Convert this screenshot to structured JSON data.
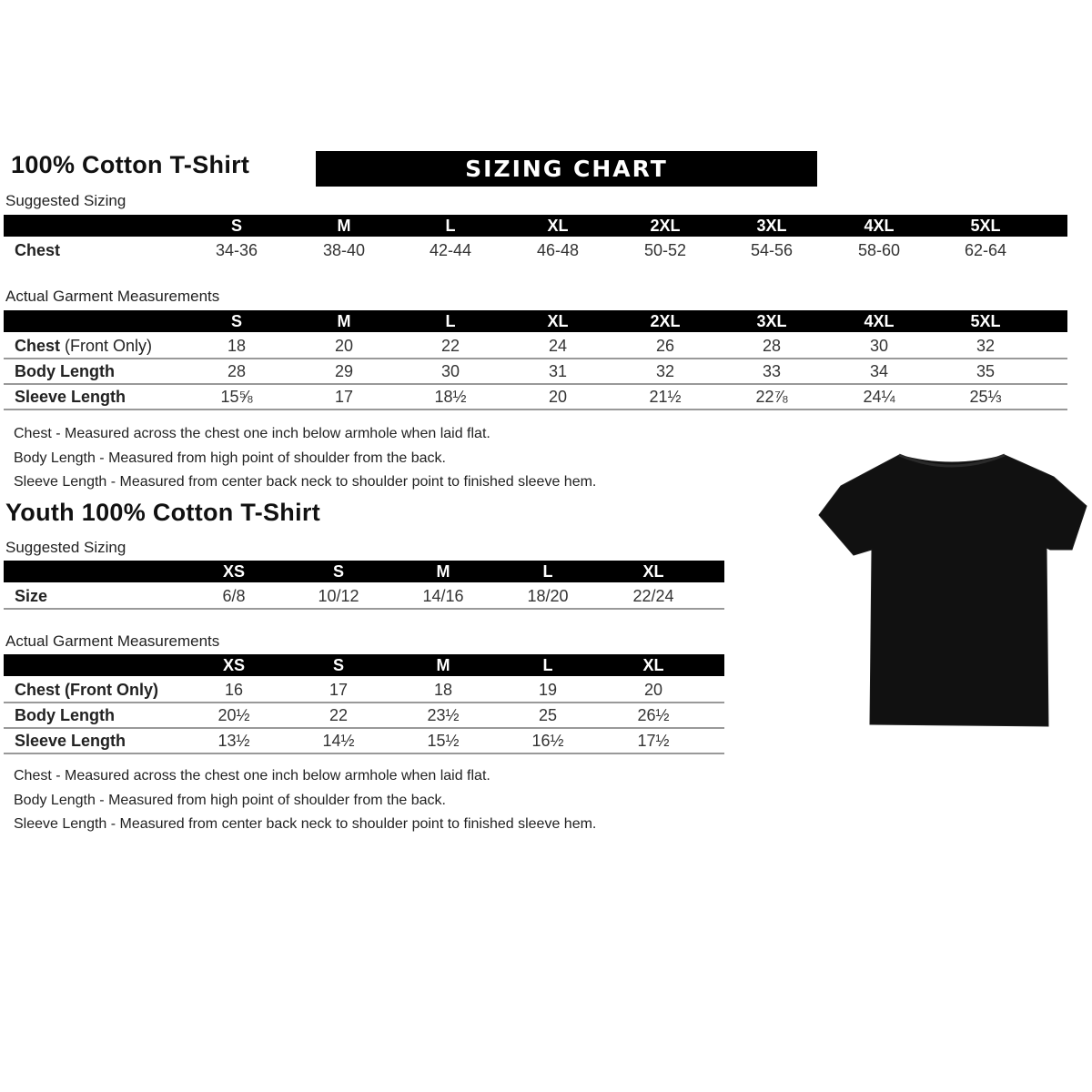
{
  "adult": {
    "title": "100% Cotton T-Shirt",
    "banner": "SIZING CHART",
    "suggested": {
      "label": "Suggested Sizing",
      "sizes": [
        "S",
        "M",
        "L",
        "XL",
        "2XL",
        "3XL",
        "4XL",
        "5XL"
      ],
      "rows": [
        {
          "label": "Chest",
          "note": "",
          "values": [
            "34-36",
            "38-40",
            "42-44",
            "46-48",
            "50-52",
            "54-56",
            "58-60",
            "62-64"
          ]
        }
      ]
    },
    "actual": {
      "label": "Actual Garment Measurements",
      "sizes": [
        "S",
        "M",
        "L",
        "XL",
        "2XL",
        "3XL",
        "4XL",
        "5XL"
      ],
      "rows": [
        {
          "label": "Chest",
          "note": " (Front Only)",
          "values": [
            "18",
            "20",
            "22",
            "24",
            "26",
            "28",
            "30",
            "32"
          ]
        },
        {
          "label": "Body Length",
          "note": "",
          "values": [
            "28",
            "29",
            "30",
            "31",
            "32",
            "33",
            "34",
            "35"
          ]
        },
        {
          "label": "Sleeve Length",
          "note": "",
          "values": [
            "15⅝",
            "17",
            "18½",
            "20",
            "21½",
            "22⅞",
            "24¼",
            "25⅓"
          ]
        }
      ]
    },
    "notes": [
      "Chest - Measured across the chest one inch below armhole when laid flat.",
      "Body Length - Measured from high point of shoulder from the back.",
      "Sleeve Length - Measured from center back neck to shoulder point to finished sleeve hem."
    ]
  },
  "youth": {
    "title": "Youth 100% Cotton T-Shirt",
    "suggested": {
      "label": "Suggested Sizing",
      "sizes": [
        "XS",
        "S",
        "M",
        "L",
        "XL"
      ],
      "rows": [
        {
          "label": "Size",
          "note": "",
          "values": [
            "6/8",
            "10/12",
            "14/16",
            "18/20",
            "22/24"
          ]
        }
      ]
    },
    "actual": {
      "label": "Actual Garment Measurements",
      "sizes": [
        "XS",
        "S",
        "M",
        "L",
        "XL"
      ],
      "rows": [
        {
          "label": "Chest (Front Only)",
          "note": "",
          "values": [
            "16",
            "17",
            "18",
            "19",
            "20"
          ]
        },
        {
          "label": "Body Length",
          "note": "",
          "values": [
            "20½",
            "22",
            "23½",
            "25",
            "26½"
          ]
        },
        {
          "label": "Sleeve Length",
          "note": "",
          "values": [
            "13½",
            "14½",
            "15½",
            "16½",
            "17½"
          ]
        }
      ]
    },
    "notes": [
      "Chest - Measured across the chest one inch below armhole when laid flat.",
      "Body Length - Measured from high point of shoulder from the back.",
      "Sleeve Length - Measured from center back neck to shoulder point to finished sleeve hem."
    ]
  },
  "image": {
    "icon": "black-tshirt-icon",
    "color": "#111111"
  }
}
